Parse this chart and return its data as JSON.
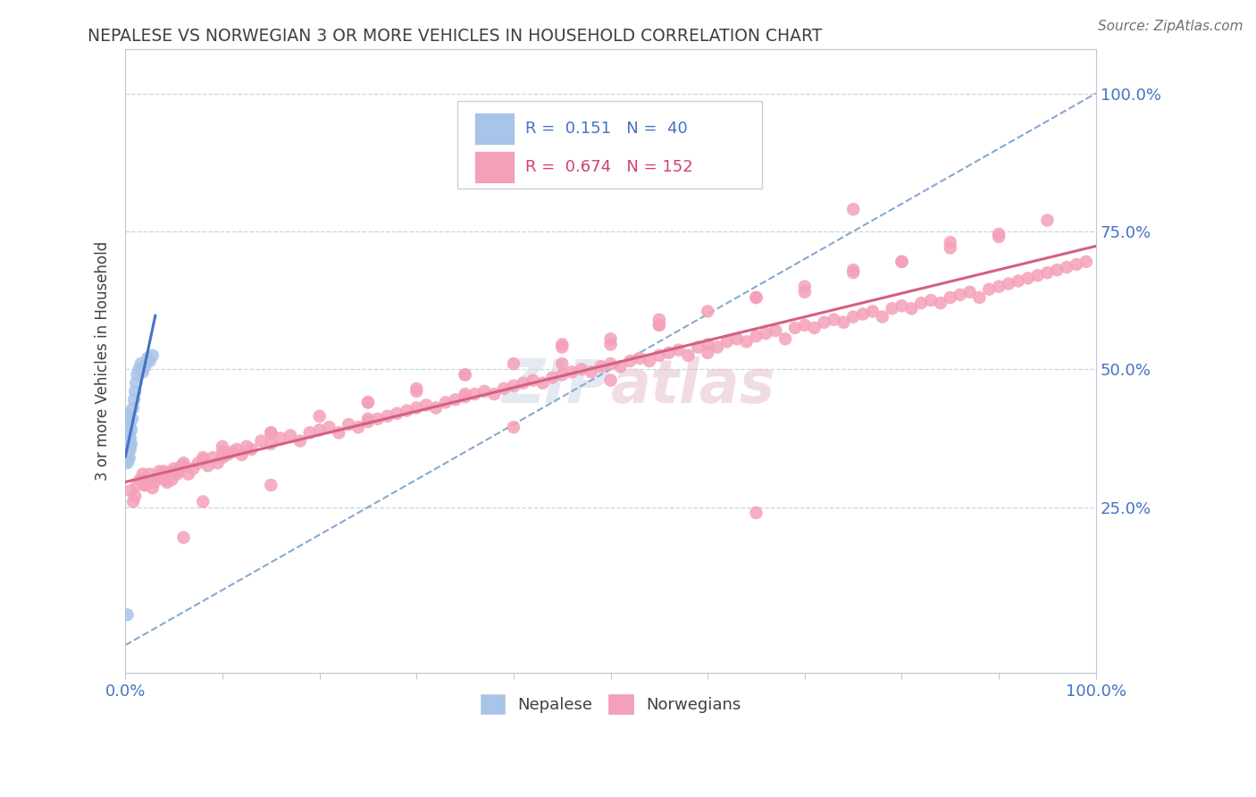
{
  "title": "NEPALESE VS NORWEGIAN 3 OR MORE VEHICLES IN HOUSEHOLD CORRELATION CHART",
  "source": "Source: ZipAtlas.com",
  "ylabel": "3 or more Vehicles in Household",
  "legend_label1": "Nepalese",
  "legend_label2": "Norwegians",
  "nepalese_color": "#a8c4e8",
  "norwegian_color": "#f4a0b8",
  "nepalese_line_color": "#4472c4",
  "norwegian_line_color": "#d46080",
  "diag_line_color": "#88a8d0",
  "background_color": "#ffffff",
  "title_color": "#404040",
  "axis_label_color": "#4472c4",
  "grid_color": "#c8d4dc",
  "watermark": "ZIPatlas",
  "nepalese_x": [
    0.001,
    0.001,
    0.001,
    0.001,
    0.002,
    0.002,
    0.002,
    0.002,
    0.002,
    0.002,
    0.002,
    0.003,
    0.003,
    0.003,
    0.003,
    0.003,
    0.003,
    0.004,
    0.004,
    0.004,
    0.004,
    0.005,
    0.005,
    0.005,
    0.006,
    0.006,
    0.007,
    0.008,
    0.009,
    0.01,
    0.011,
    0.012,
    0.014,
    0.016,
    0.018,
    0.02,
    0.023,
    0.025,
    0.028,
    0.002
  ],
  "nepalese_y": [
    0.34,
    0.355,
    0.37,
    0.385,
    0.33,
    0.345,
    0.36,
    0.375,
    0.39,
    0.405,
    0.42,
    0.335,
    0.35,
    0.365,
    0.38,
    0.395,
    0.415,
    0.34,
    0.36,
    0.38,
    0.4,
    0.355,
    0.375,
    0.395,
    0.365,
    0.39,
    0.41,
    0.43,
    0.445,
    0.46,
    0.475,
    0.49,
    0.5,
    0.51,
    0.495,
    0.505,
    0.52,
    0.515,
    0.525,
    0.055
  ],
  "norwegian_x": [
    0.005,
    0.008,
    0.01,
    0.012,
    0.015,
    0.018,
    0.02,
    0.022,
    0.025,
    0.028,
    0.03,
    0.033,
    0.035,
    0.038,
    0.04,
    0.043,
    0.045,
    0.048,
    0.05,
    0.053,
    0.055,
    0.058,
    0.06,
    0.065,
    0.07,
    0.075,
    0.08,
    0.085,
    0.09,
    0.095,
    0.1,
    0.105,
    0.11,
    0.115,
    0.12,
    0.125,
    0.13,
    0.14,
    0.15,
    0.16,
    0.17,
    0.18,
    0.19,
    0.2,
    0.21,
    0.22,
    0.23,
    0.24,
    0.25,
    0.26,
    0.27,
    0.28,
    0.29,
    0.3,
    0.31,
    0.32,
    0.33,
    0.34,
    0.35,
    0.36,
    0.37,
    0.38,
    0.39,
    0.4,
    0.41,
    0.42,
    0.43,
    0.44,
    0.45,
    0.46,
    0.47,
    0.48,
    0.49,
    0.5,
    0.51,
    0.52,
    0.53,
    0.54,
    0.55,
    0.56,
    0.57,
    0.58,
    0.59,
    0.6,
    0.61,
    0.62,
    0.63,
    0.64,
    0.65,
    0.66,
    0.67,
    0.68,
    0.69,
    0.7,
    0.71,
    0.72,
    0.73,
    0.74,
    0.75,
    0.76,
    0.77,
    0.78,
    0.79,
    0.8,
    0.81,
    0.82,
    0.83,
    0.84,
    0.85,
    0.86,
    0.87,
    0.88,
    0.89,
    0.9,
    0.91,
    0.92,
    0.93,
    0.94,
    0.95,
    0.96,
    0.97,
    0.98,
    0.99,
    0.02,
    0.04,
    0.06,
    0.08,
    0.1,
    0.15,
    0.2,
    0.25,
    0.3,
    0.35,
    0.4,
    0.45,
    0.5,
    0.55,
    0.6,
    0.65,
    0.7,
    0.75,
    0.8,
    0.85,
    0.9,
    0.05,
    0.15,
    0.25,
    0.35,
    0.45,
    0.55,
    0.65,
    0.75,
    0.85,
    0.95,
    0.1,
    0.3,
    0.5,
    0.7,
    0.9,
    0.55,
    0.45,
    0.35,
    0.25,
    0.15,
    0.06,
    0.08,
    0.4,
    0.6,
    0.8,
    0.65,
    0.75,
    0.5
  ],
  "norwegian_y": [
    0.28,
    0.26,
    0.27,
    0.29,
    0.3,
    0.31,
    0.29,
    0.3,
    0.31,
    0.285,
    0.295,
    0.305,
    0.315,
    0.305,
    0.315,
    0.295,
    0.31,
    0.3,
    0.32,
    0.31,
    0.315,
    0.325,
    0.33,
    0.31,
    0.32,
    0.33,
    0.335,
    0.325,
    0.34,
    0.33,
    0.34,
    0.345,
    0.35,
    0.355,
    0.345,
    0.36,
    0.355,
    0.37,
    0.365,
    0.375,
    0.38,
    0.37,
    0.385,
    0.39,
    0.395,
    0.385,
    0.4,
    0.395,
    0.405,
    0.41,
    0.415,
    0.42,
    0.425,
    0.43,
    0.435,
    0.43,
    0.44,
    0.445,
    0.45,
    0.455,
    0.46,
    0.455,
    0.465,
    0.47,
    0.475,
    0.48,
    0.475,
    0.485,
    0.49,
    0.495,
    0.5,
    0.495,
    0.505,
    0.51,
    0.505,
    0.515,
    0.52,
    0.515,
    0.525,
    0.53,
    0.535,
    0.525,
    0.54,
    0.545,
    0.54,
    0.55,
    0.555,
    0.55,
    0.56,
    0.565,
    0.57,
    0.555,
    0.575,
    0.58,
    0.575,
    0.585,
    0.59,
    0.585,
    0.595,
    0.6,
    0.605,
    0.595,
    0.61,
    0.615,
    0.61,
    0.62,
    0.625,
    0.62,
    0.63,
    0.635,
    0.64,
    0.63,
    0.645,
    0.65,
    0.655,
    0.66,
    0.665,
    0.67,
    0.675,
    0.68,
    0.685,
    0.69,
    0.695,
    0.29,
    0.3,
    0.325,
    0.34,
    0.35,
    0.385,
    0.415,
    0.44,
    0.465,
    0.49,
    0.51,
    0.54,
    0.555,
    0.58,
    0.605,
    0.63,
    0.65,
    0.675,
    0.695,
    0.72,
    0.745,
    0.315,
    0.385,
    0.44,
    0.49,
    0.545,
    0.58,
    0.63,
    0.68,
    0.73,
    0.77,
    0.36,
    0.46,
    0.545,
    0.64,
    0.74,
    0.59,
    0.51,
    0.455,
    0.41,
    0.29,
    0.195,
    0.26,
    0.395,
    0.53,
    0.695,
    0.24,
    0.79,
    0.48
  ],
  "xlim": [
    0.0,
    1.0
  ],
  "ylim": [
    -0.05,
    1.08
  ],
  "yticks": [
    0.25,
    0.5,
    0.75,
    1.0
  ],
  "ytick_labels": [
    "25.0%",
    "50.0%",
    "75.0%",
    "100.0%"
  ]
}
